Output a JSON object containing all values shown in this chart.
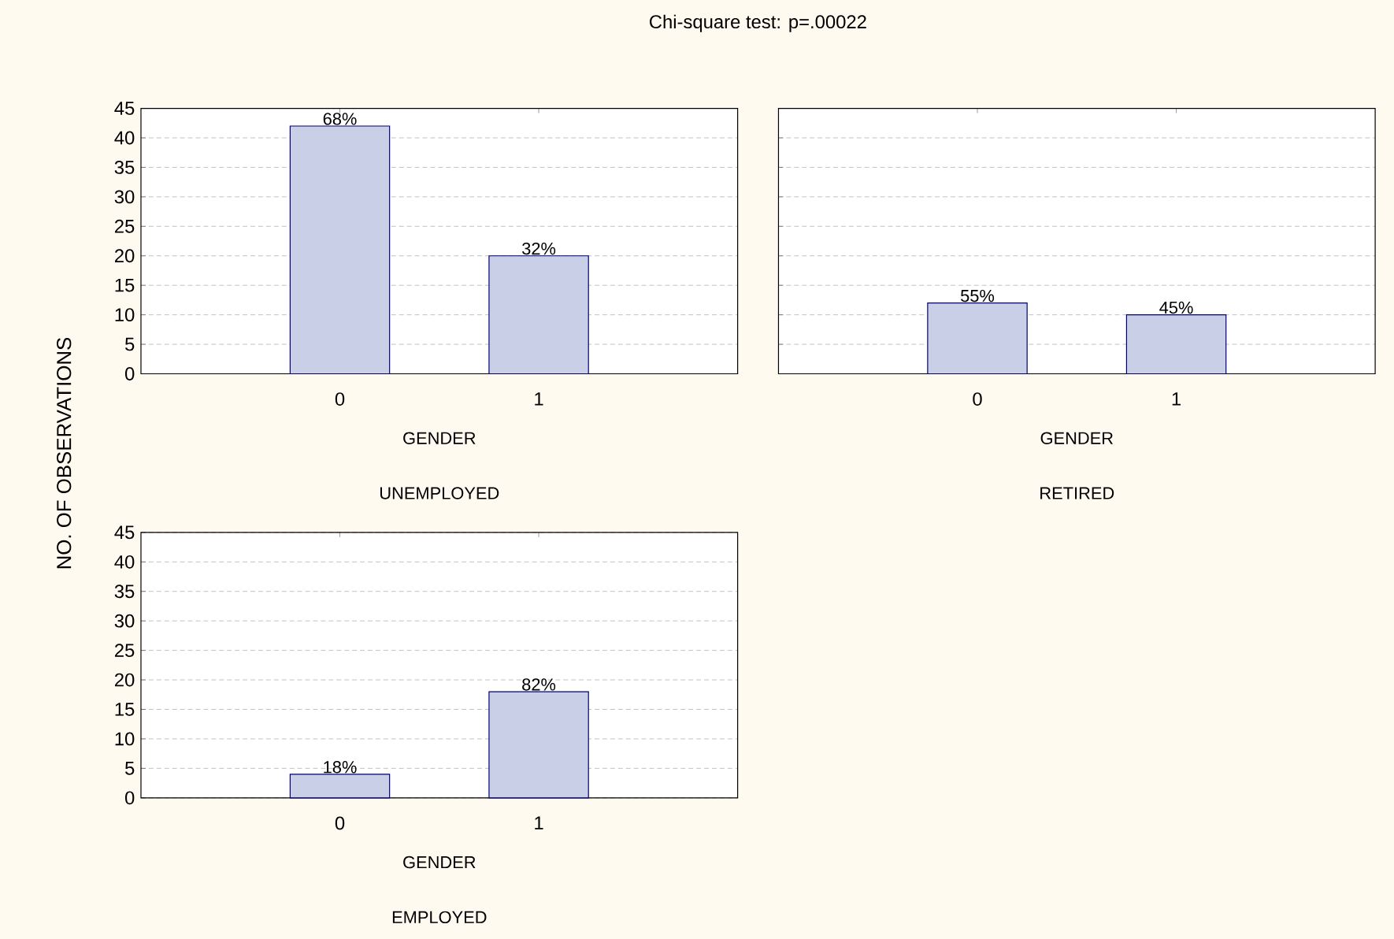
{
  "chart_data": [
    {
      "type": "bar",
      "title": "Chi-square test: p=.00022",
      "subtitle": "UNEMPLOYED",
      "xlabel": "GENDER",
      "ylabel": "NO. OF OBSERVATIONS",
      "categories": [
        "0",
        "1"
      ],
      "values": [
        42,
        20
      ],
      "color": "#c8cfe6",
      "ylim": [
        0,
        45
      ],
      "yticks": [
        0,
        5,
        10,
        15,
        20,
        25,
        30,
        35,
        40,
        45
      ],
      "grid": "y",
      "annotations": [
        {
          "text": "68%",
          "x": "0",
          "y": 42
        },
        {
          "text": "32%",
          "x": "1",
          "y": 20
        }
      ]
    },
    {
      "type": "bar",
      "subtitle": "RETIRED",
      "xlabel": "GENDER",
      "categories": [
        "0",
        "1"
      ],
      "values": [
        12,
        10
      ],
      "color": "#c8cfe6",
      "ylim": [
        0,
        45
      ],
      "yticks": [
        0,
        5,
        10,
        15,
        20,
        25,
        30,
        35,
        40,
        45
      ],
      "grid": "y",
      "tick_labels": "x",
      "annotations": [
        {
          "text": "55%",
          "x": "0",
          "y": 12
        },
        {
          "text": "45%",
          "x": "1",
          "y": 10
        }
      ]
    },
    {
      "type": "bar",
      "subtitle": "EMPLOYED",
      "xlabel": "GENDER",
      "categories": [
        "0",
        "1"
      ],
      "values": [
        4,
        18
      ],
      "color": "#c8cfe6",
      "ylim": [
        0,
        45
      ],
      "yticks": [
        0,
        5,
        10,
        15,
        20,
        25,
        30,
        35,
        40,
        45
      ],
      "grid": "y",
      "annotations": [
        {
          "text": "18%",
          "x": "0",
          "y": 4
        },
        {
          "text": "82%",
          "x": "1",
          "y": 18
        }
      ]
    }
  ]
}
